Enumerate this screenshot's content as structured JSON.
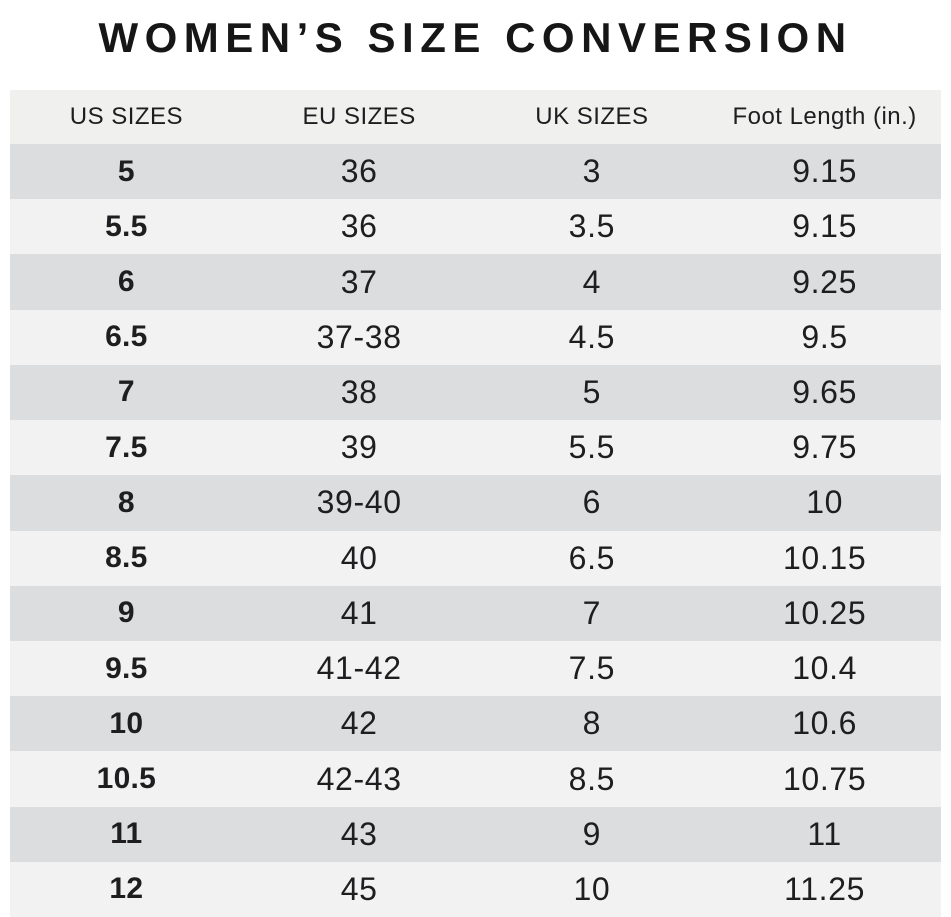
{
  "title": "WOMEN’S SIZE CONVERSION",
  "colors": {
    "title_text": "#161616",
    "text": "#1e1e20",
    "header_bg": "#f0f0ef",
    "row_shade_dark": "#dcddde",
    "row_shade_light": "#f2f2f2",
    "page_bg": "#ffffff"
  },
  "table": {
    "headers": [
      "US SIZES",
      "EU SIZES",
      "UK SIZES",
      "Foot Length (in.)"
    ],
    "rows": [
      {
        "us": "5",
        "eu": "36",
        "uk": "3",
        "foot": "9.15"
      },
      {
        "us": "5.5",
        "eu": "36",
        "uk": "3.5",
        "foot": "9.15"
      },
      {
        "us": "6",
        "eu": "37",
        "uk": "4",
        "foot": "9.25"
      },
      {
        "us": "6.5",
        "eu": "37-38",
        "uk": "4.5",
        "foot": "9.5"
      },
      {
        "us": "7",
        "eu": "38",
        "uk": "5",
        "foot": "9.65"
      },
      {
        "us": "7.5",
        "eu": "39",
        "uk": "5.5",
        "foot": "9.75"
      },
      {
        "us": "8",
        "eu": "39-40",
        "uk": "6",
        "foot": "10"
      },
      {
        "us": "8.5",
        "eu": "40",
        "uk": "6.5",
        "foot": "10.15"
      },
      {
        "us": "9",
        "eu": "41",
        "uk": "7",
        "foot": "10.25"
      },
      {
        "us": "9.5",
        "eu": "41-42",
        "uk": "7.5",
        "foot": "10.4"
      },
      {
        "us": "10",
        "eu": "42",
        "uk": "8",
        "foot": "10.6"
      },
      {
        "us": "10.5",
        "eu": "42-43",
        "uk": "8.5",
        "foot": "10.75"
      },
      {
        "us": "11",
        "eu": "43",
        "uk": "9",
        "foot": "11"
      },
      {
        "us": "12",
        "eu": "45",
        "uk": "10",
        "foot": "11.25"
      }
    ]
  }
}
